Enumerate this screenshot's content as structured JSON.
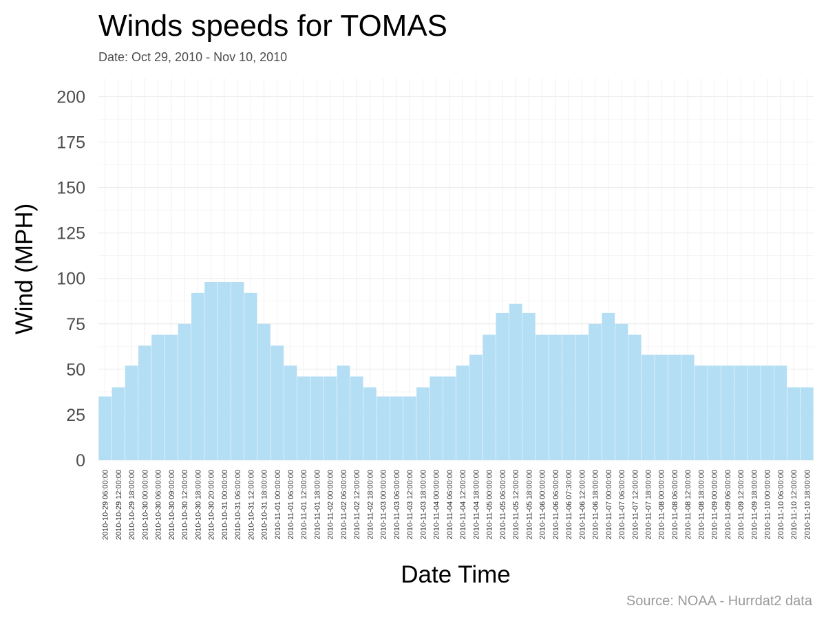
{
  "chart_data": {
    "type": "bar",
    "title": "Winds speeds for TOMAS",
    "subtitle": "Date:  Oct 29, 2010 - Nov 10, 2010",
    "xlabel": "Date Time",
    "ylabel": "Wind (MPH)",
    "caption": "Source: NOAA - Hurrdat2 data",
    "ylim": [
      0,
      210
    ],
    "yticks": [
      0,
      25,
      50,
      75,
      100,
      125,
      150,
      175,
      200
    ],
    "grid": true,
    "bar_color": "#b3def4",
    "categories": [
      "2010-10-29 06:00:00",
      "2010-10-29 12:00:00",
      "2010-10-29 18:00:00",
      "2010-10-30 00:00:00",
      "2010-10-30 06:00:00",
      "2010-10-30 09:00:00",
      "2010-10-30 12:00:00",
      "2010-10-30 18:00:00",
      "2010-10-30 20:00:00",
      "2010-10-31 00:00:00",
      "2010-10-31 06:00:00",
      "2010-10-31 12:00:00",
      "2010-10-31 18:00:00",
      "2010-11-01 00:00:00",
      "2010-11-01 06:00:00",
      "2010-11-01 12:00:00",
      "2010-11-01 18:00:00",
      "2010-11-02 00:00:00",
      "2010-11-02 06:00:00",
      "2010-11-02 12:00:00",
      "2010-11-02 18:00:00",
      "2010-11-03 00:00:00",
      "2010-11-03 06:00:00",
      "2010-11-03 12:00:00",
      "2010-11-03 18:00:00",
      "2010-11-04 00:00:00",
      "2010-11-04 06:00:00",
      "2010-11-04 12:00:00",
      "2010-11-04 18:00:00",
      "2010-11-05 00:00:00",
      "2010-11-05 06:00:00",
      "2010-11-05 12:00:00",
      "2010-11-05 18:00:00",
      "2010-11-06 00:00:00",
      "2010-11-06 06:00:00",
      "2010-11-06 07:30:00",
      "2010-11-06 12:00:00",
      "2010-11-06 18:00:00",
      "2010-11-07 00:00:00",
      "2010-11-07 06:00:00",
      "2010-11-07 12:00:00",
      "2010-11-07 18:00:00",
      "2010-11-08 00:00:00",
      "2010-11-08 06:00:00",
      "2010-11-08 12:00:00",
      "2010-11-08 18:00:00",
      "2010-11-09 00:00:00",
      "2010-11-09 06:00:00",
      "2010-11-09 12:00:00",
      "2010-11-09 18:00:00",
      "2010-11-10 00:00:00",
      "2010-11-10 06:00:00",
      "2010-11-10 12:00:00",
      "2010-11-10 18:00:00"
    ],
    "values": [
      35,
      40,
      52,
      63,
      69,
      69,
      75,
      92,
      98,
      98,
      98,
      92,
      75,
      63,
      52,
      46,
      46,
      46,
      52,
      46,
      40,
      35,
      35,
      35,
      40,
      46,
      46,
      52,
      58,
      69,
      81,
      86,
      81,
      69,
      69,
      69,
      69,
      75,
      81,
      75,
      69,
      58,
      58,
      58,
      58,
      52,
      52,
      52,
      52,
      52,
      52,
      52,
      40,
      40
    ]
  }
}
